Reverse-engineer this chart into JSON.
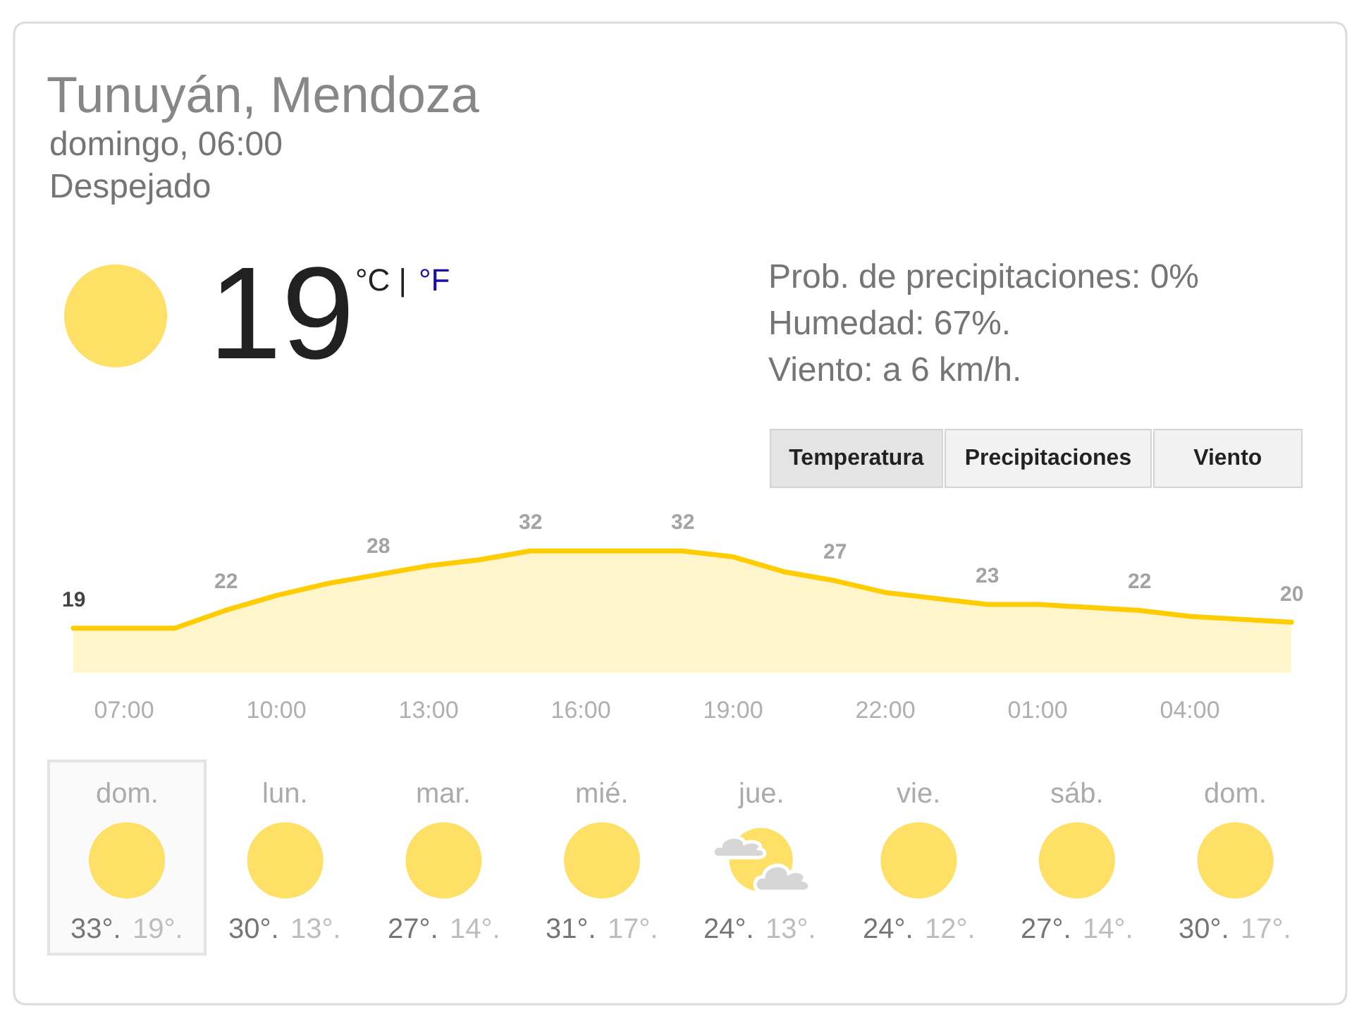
{
  "chart_data": {
    "type": "area",
    "title": "Tunuyán, Mendoza",
    "subtitle": "domingo, 06:00",
    "categories": [
      null,
      "07:00",
      null,
      null,
      "10:00",
      null,
      null,
      "13:00",
      null,
      null,
      "16:00",
      null,
      null,
      "19:00",
      null,
      null,
      "22:00",
      null,
      null,
      "01:00",
      null,
      null,
      "04:00",
      null,
      null
    ],
    "values": [
      19,
      19,
      19,
      22,
      24.5,
      26.5,
      28,
      29.5,
      30.5,
      32,
      32,
      32,
      32,
      31,
      28.5,
      27,
      25,
      24,
      23,
      23,
      22.5,
      22,
      21,
      20.5,
      20
    ],
    "value_labels": [
      "19",
      null,
      null,
      "22",
      null,
      null,
      "28",
      null,
      null,
      "32",
      null,
      null,
      "32",
      null,
      null,
      "27",
      null,
      null,
      "23",
      null,
      null,
      "22",
      null,
      null,
      "20"
    ],
    "color": "#ffcc00",
    "tick_labels": "x",
    "annotations": [
      "Despejado",
      "19",
      "°C |",
      "°F",
      "Prob. de precipitaciones: 0%",
      "Humedad: 67%.",
      "Viento: a 6 km/h.",
      "Temperatura",
      "Precipitaciones",
      "Viento",
      "dom.",
      "33°.",
      "19°.",
      "lun.",
      "30°.",
      "13°.",
      "mar.",
      "27°.",
      "14°.",
      "mié.",
      "31°.",
      "17°.",
      "jue.",
      "24°.",
      "13°.",
      "vie.",
      "24°.",
      "12°.",
      "sáb.",
      "27°.",
      "14°.",
      "dom.",
      "30°.",
      "17°."
    ]
  }
}
